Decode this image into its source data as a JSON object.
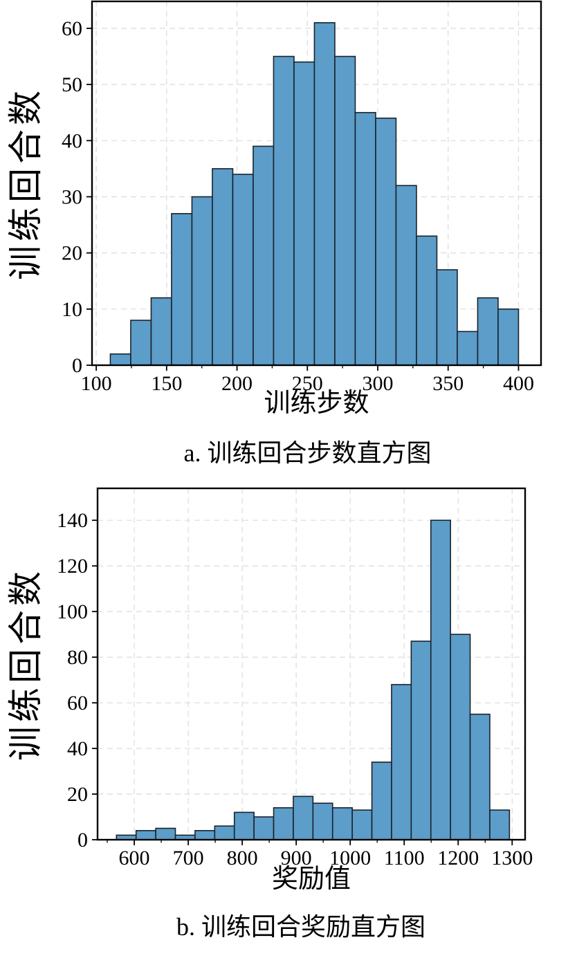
{
  "page": {
    "background": "#ffffff"
  },
  "styles": {
    "bar_fill": "#5C9DC9",
    "bar_edge": "#1A222B",
    "grid_color": "#DBDBDB",
    "axis_color": "#000000",
    "text_color": "#000000"
  },
  "chart_data": [
    {
      "id": "a",
      "type": "bar",
      "subtype": "histogram",
      "caption": "a. 训练回合步数直方图",
      "xlabel": "训练步数",
      "ylabel": "训练回合数",
      "bin_start": 110,
      "bin_width": 14.5,
      "values": [
        2,
        8,
        12,
        27,
        30,
        35,
        34,
        39,
        55,
        54,
        61,
        55,
        45,
        44,
        32,
        23,
        17,
        6,
        12,
        10
      ],
      "xticks": [
        100,
        150,
        200,
        250,
        300,
        350,
        400
      ],
      "yticks": [
        0,
        10,
        20,
        30,
        40,
        50,
        60
      ],
      "x_minor_step": 25,
      "xlim": [
        97,
        416
      ],
      "ylim": [
        0,
        64.8
      ],
      "grid": true,
      "legend_position": "none"
    },
    {
      "id": "b",
      "type": "bar",
      "subtype": "histogram",
      "caption": "b. 训练回合奖励直方图",
      "xlabel": "奖励值",
      "ylabel": "训练回合数",
      "bin_start": 567,
      "bin_width": 36.4,
      "values": [
        2,
        4,
        5,
        2,
        4,
        6,
        12,
        10,
        14,
        19,
        16,
        14,
        13,
        34,
        68,
        87,
        140,
        90,
        55,
        13
      ],
      "xticks": [
        600,
        700,
        800,
        900,
        1000,
        1100,
        1200,
        1300
      ],
      "yticks": [
        0,
        20,
        40,
        60,
        80,
        100,
        120,
        140
      ],
      "x_minor_step": 50,
      "xlim": [
        532,
        1324
      ],
      "ylim": [
        0,
        154
      ],
      "grid": true,
      "legend_position": "none"
    }
  ]
}
